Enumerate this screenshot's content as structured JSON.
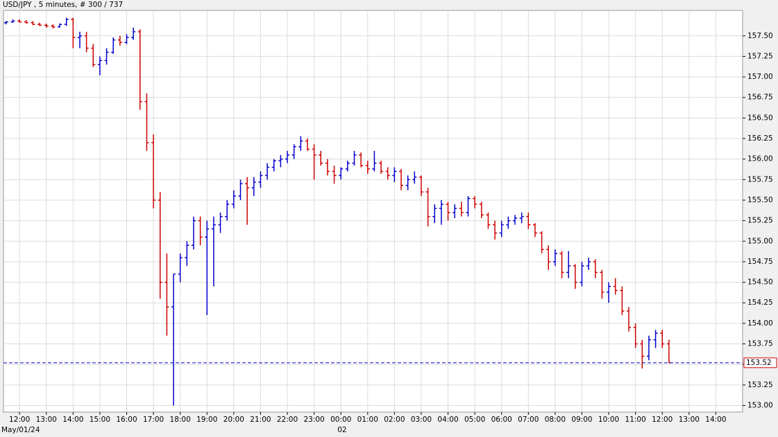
{
  "chart_data": {
    "type": "ohlc",
    "title": "USD/JPY , 5 minutes, # 300 / 737",
    "date_start": "May/01/24",
    "date_next": "02",
    "up_color": "#0000cc",
    "down_color": "#cc0000",
    "last_price": 153.52,
    "last_price_color": "#0000cc",
    "grid": true,
    "xlim": [
      -0.6,
      27.0
    ],
    "xticks": [
      {
        "value": 0,
        "label": "12:00"
      },
      {
        "value": 1,
        "label": "13:00"
      },
      {
        "value": 2,
        "label": "14:00"
      },
      {
        "value": 3,
        "label": "15:00"
      },
      {
        "value": 4,
        "label": "16:00"
      },
      {
        "value": 5,
        "label": "17:00"
      },
      {
        "value": 6,
        "label": "18:00"
      },
      {
        "value": 7,
        "label": "19:00"
      },
      {
        "value": 8,
        "label": "20:00"
      },
      {
        "value": 9,
        "label": "21:00"
      },
      {
        "value": 10,
        "label": "22:00"
      },
      {
        "value": 11,
        "label": "23:00"
      },
      {
        "value": 12,
        "label": "00:00"
      },
      {
        "value": 13,
        "label": "01:00"
      },
      {
        "value": 14,
        "label": "02:00"
      },
      {
        "value": 15,
        "label": "03:00"
      },
      {
        "value": 16,
        "label": "04:00"
      },
      {
        "value": 17,
        "label": "05:00"
      },
      {
        "value": 18,
        "label": "06:00"
      },
      {
        "value": 19,
        "label": "07:00"
      },
      {
        "value": 20,
        "label": "08:00"
      },
      {
        "value": 21,
        "label": "09:00"
      },
      {
        "value": 22,
        "label": "10:00"
      },
      {
        "value": 23,
        "label": "11:00"
      },
      {
        "value": 24,
        "label": "12:00"
      },
      {
        "value": 25,
        "label": "13:00"
      },
      {
        "value": 26,
        "label": "14:00"
      }
    ],
    "ylim": [
      152.92,
      157.81
    ],
    "yticks": [
      {
        "value": 153,
        "label": "153.00"
      },
      153.25,
      {
        "value": 153.5,
        "label": "153.50"
      },
      153.75,
      {
        "value": 154,
        "label": "154.00"
      },
      154.25,
      {
        "value": 154.5,
        "label": "154.50"
      },
      154.75,
      {
        "value": 155,
        "label": "155.00"
      },
      155.25,
      {
        "value": 155.5,
        "label": "155.50"
      },
      155.75,
      {
        "value": 156,
        "label": "156.00"
      },
      156.25,
      {
        "value": 156.5,
        "label": "156.50"
      },
      156.75,
      {
        "value": 157,
        "label": "157.00"
      },
      157.25,
      {
        "value": 157.5,
        "label": "157.50"
      }
    ],
    "x": [
      -0.5,
      -0.25,
      0,
      0.25,
      0.5,
      0.75,
      1,
      1.25,
      1.5,
      1.75,
      2,
      2.25,
      2.5,
      2.75,
      3,
      3.25,
      3.5,
      3.75,
      4,
      4.25,
      4.5,
      4.75,
      5,
      5.25,
      5.5,
      5.75,
      6,
      6.25,
      6.5,
      6.75,
      7,
      7.25,
      7.5,
      7.75,
      8,
      8.25,
      8.5,
      8.75,
      9,
      9.25,
      9.5,
      9.75,
      10,
      10.25,
      10.5,
      10.75,
      11,
      11.25,
      11.5,
      11.75,
      12,
      12.25,
      12.5,
      12.75,
      13,
      13.25,
      13.5,
      13.75,
      14,
      14.25,
      14.5,
      14.75,
      15,
      15.25,
      15.5,
      15.75,
      16,
      16.25,
      16.5,
      16.75,
      17,
      17.25,
      17.5,
      17.75,
      18,
      18.25,
      18.5,
      18.75,
      19,
      19.25,
      19.5,
      19.75,
      20,
      20.25,
      20.5,
      20.75,
      21,
      21.25,
      21.5,
      21.75,
      22,
      22.25,
      22.5,
      22.75,
      23,
      23.25,
      23.5,
      23.75,
      24,
      24.25
    ],
    "open": [
      157.66,
      157.67,
      157.68,
      157.67,
      157.66,
      157.64,
      157.63,
      157.62,
      157.61,
      157.64,
      157.7,
      157.48,
      157.5,
      157.35,
      157.15,
      157.2,
      157.3,
      157.45,
      157.42,
      157.48,
      157.55,
      156.7,
      156.2,
      155.5,
      154.5,
      154.2,
      154.6,
      154.8,
      154.95,
      155.25,
      155.05,
      155.15,
      155.2,
      155.3,
      155.45,
      155.55,
      155.7,
      155.65,
      155.72,
      155.8,
      155.9,
      155.98,
      156.0,
      156.05,
      156.15,
      156.22,
      156.12,
      156.05,
      155.95,
      155.85,
      155.8,
      155.88,
      155.95,
      156.05,
      155.92,
      155.88,
      155.95,
      155.85,
      155.8,
      155.85,
      155.68,
      155.75,
      155.78,
      155.6,
      155.3,
      155.4,
      155.45,
      155.35,
      155.4,
      155.35,
      155.52,
      155.45,
      155.32,
      155.2,
      155.1,
      155.2,
      155.25,
      155.28,
      155.3,
      155.2,
      155.1,
      154.9,
      154.75,
      154.85,
      154.62,
      154.7,
      154.5,
      154.7,
      154.75,
      154.62,
      154.38,
      154.45,
      154.4,
      154.15,
      153.95,
      153.75,
      153.6,
      153.8,
      153.88,
      153.75
    ],
    "high": [
      157.68,
      157.7,
      157.7,
      157.69,
      157.68,
      157.66,
      157.65,
      157.64,
      157.65,
      157.72,
      157.72,
      157.55,
      157.55,
      157.4,
      157.25,
      157.35,
      157.48,
      157.5,
      157.52,
      157.6,
      157.58,
      156.8,
      156.3,
      155.6,
      154.85,
      154.6,
      154.85,
      155.0,
      155.3,
      155.3,
      155.25,
      155.3,
      155.35,
      155.5,
      155.62,
      155.75,
      155.78,
      155.78,
      155.85,
      155.95,
      156.0,
      156.05,
      156.1,
      156.18,
      156.28,
      156.25,
      156.18,
      156.1,
      156.0,
      155.92,
      155.9,
      155.98,
      156.1,
      156.08,
      155.98,
      156.1,
      155.98,
      155.9,
      155.9,
      155.88,
      155.8,
      155.85,
      155.8,
      155.65,
      155.45,
      155.5,
      155.48,
      155.45,
      155.48,
      155.55,
      155.55,
      155.48,
      155.35,
      155.25,
      155.25,
      155.3,
      155.32,
      155.35,
      155.35,
      155.22,
      155.12,
      154.95,
      154.9,
      154.88,
      154.88,
      154.72,
      154.75,
      154.8,
      154.78,
      154.65,
      154.5,
      154.55,
      154.45,
      154.2,
      154.0,
      153.8,
      153.85,
      153.92,
      153.92,
      153.8
    ],
    "low": [
      157.64,
      157.66,
      157.66,
      157.65,
      157.63,
      157.62,
      157.6,
      157.59,
      157.6,
      157.62,
      157.35,
      157.35,
      157.3,
      157.12,
      157.02,
      157.15,
      157.28,
      157.38,
      157.4,
      157.45,
      156.6,
      156.1,
      155.4,
      154.3,
      153.85,
      153.0,
      154.5,
      154.7,
      154.9,
      154.95,
      154.1,
      154.45,
      155.1,
      155.25,
      155.4,
      155.5,
      155.2,
      155.55,
      155.65,
      155.75,
      155.85,
      155.9,
      155.95,
      156.0,
      156.1,
      156.1,
      155.75,
      155.92,
      155.8,
      155.7,
      155.75,
      155.85,
      155.92,
      155.9,
      155.82,
      155.85,
      155.82,
      155.75,
      155.72,
      155.62,
      155.62,
      155.7,
      155.55,
      155.18,
      155.22,
      155.2,
      155.25,
      155.28,
      155.3,
      155.3,
      155.4,
      155.28,
      155.15,
      155.02,
      155.05,
      155.15,
      155.2,
      155.22,
      155.15,
      155.05,
      154.85,
      154.65,
      154.7,
      154.55,
      154.55,
      154.42,
      154.45,
      154.65,
      154.55,
      154.3,
      154.25,
      154.35,
      154.1,
      153.9,
      153.7,
      153.45,
      153.55,
      153.7,
      153.7,
      153.52
    ],
    "close": [
      157.67,
      157.68,
      157.67,
      157.66,
      157.64,
      157.63,
      157.62,
      157.61,
      157.64,
      157.7,
      157.48,
      157.5,
      157.35,
      157.15,
      157.2,
      157.3,
      157.45,
      157.42,
      157.48,
      157.55,
      156.7,
      156.2,
      155.5,
      154.5,
      154.2,
      154.6,
      154.8,
      154.95,
      155.25,
      155.05,
      155.15,
      155.2,
      155.3,
      155.45,
      155.55,
      155.7,
      155.65,
      155.72,
      155.8,
      155.9,
      155.98,
      156.0,
      156.05,
      156.15,
      156.22,
      156.12,
      156.05,
      155.95,
      155.85,
      155.8,
      155.88,
      155.95,
      156.05,
      155.92,
      155.88,
      155.95,
      155.85,
      155.8,
      155.85,
      155.68,
      155.75,
      155.78,
      155.6,
      155.3,
      155.4,
      155.45,
      155.35,
      155.4,
      155.35,
      155.52,
      155.45,
      155.32,
      155.2,
      155.1,
      155.2,
      155.25,
      155.28,
      155.3,
      155.2,
      155.1,
      154.9,
      154.75,
      154.85,
      154.62,
      154.7,
      154.5,
      154.7,
      154.75,
      154.62,
      154.38,
      154.45,
      154.4,
      154.15,
      153.95,
      153.75,
      153.6,
      153.8,
      153.88,
      153.75,
      153.52
    ]
  }
}
